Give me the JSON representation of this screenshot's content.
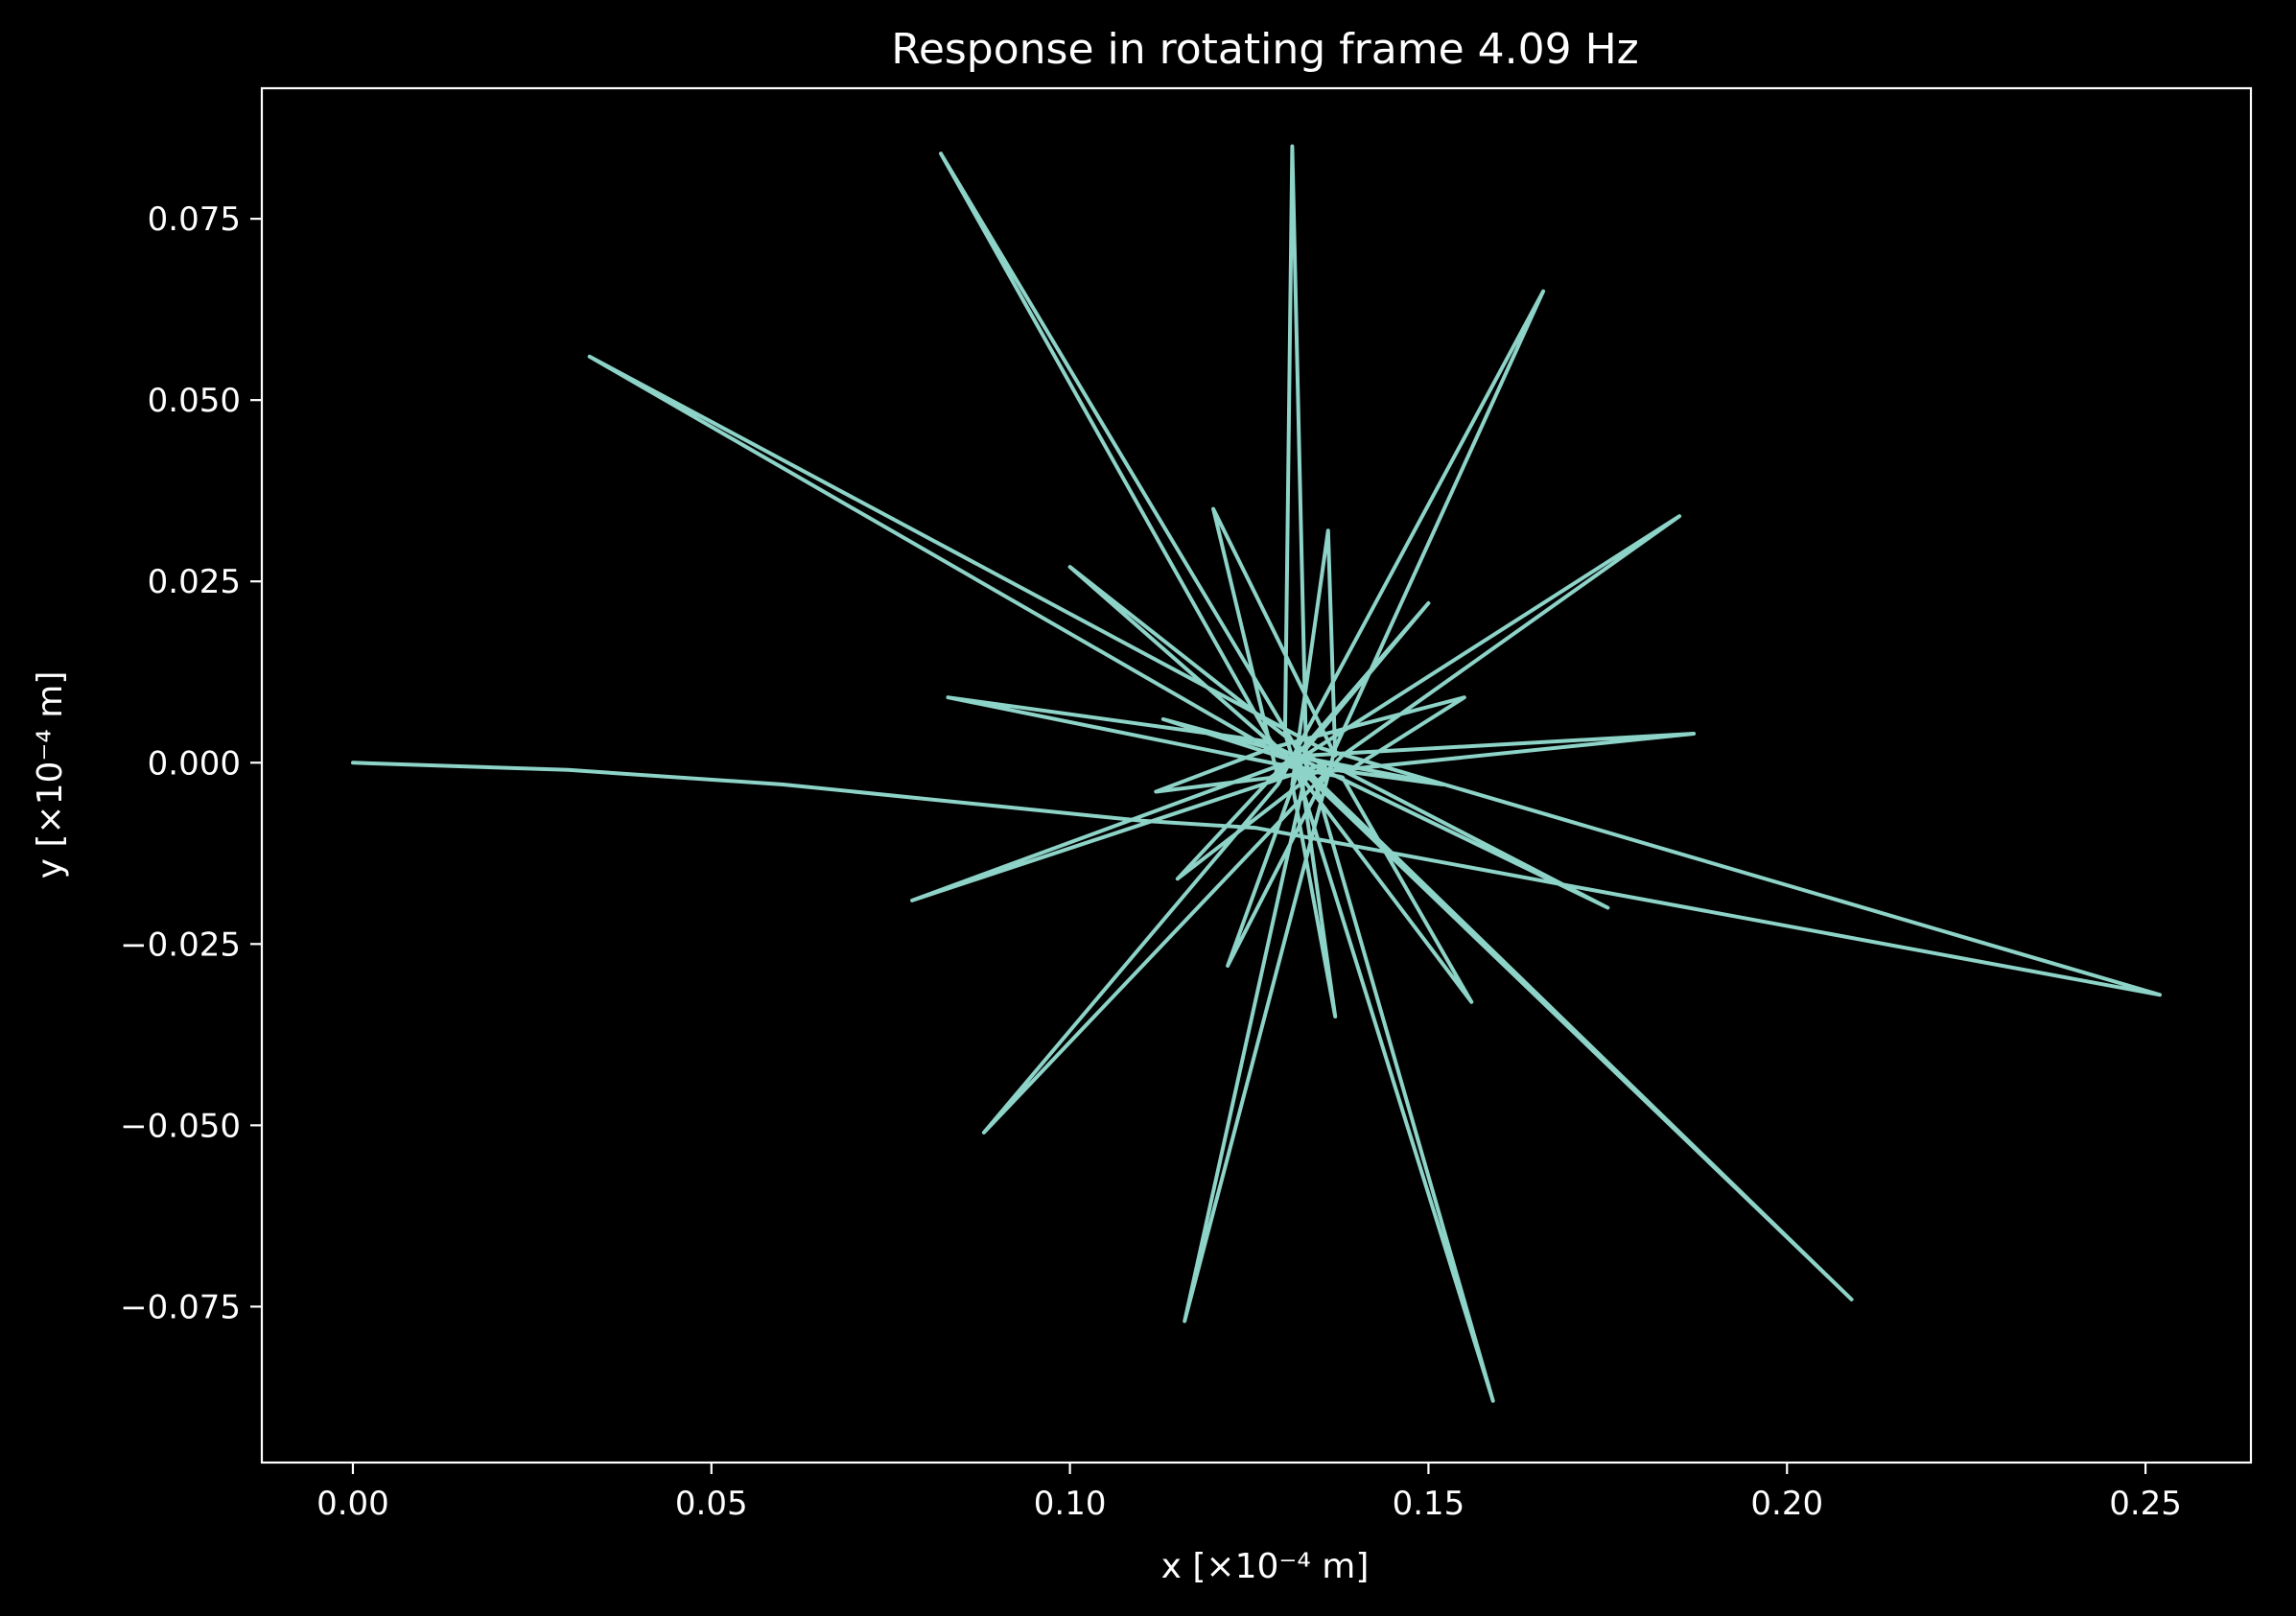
{
  "chart_data": {
    "type": "line",
    "title": "Response in rotating frame 4.09 Hz",
    "xlabel": "x [×10⁻⁴ m]",
    "ylabel": "y [×10⁻⁴ m]",
    "xlim": [
      -0.0127,
      0.2647
    ],
    "ylim": [
      -0.0965,
      0.093
    ],
    "x_ticks": [
      0.0,
      0.05,
      0.1,
      0.15,
      0.2,
      0.25
    ],
    "x_tick_labels": [
      "0.00",
      "0.05",
      "0.10",
      "0.15",
      "0.20",
      "0.25"
    ],
    "y_ticks": [
      0.075,
      0.05,
      0.025,
      0.0,
      -0.025,
      -0.05,
      -0.075
    ],
    "y_tick_labels": [
      "0.075",
      "0.050",
      "0.025",
      "0.000",
      "−0.025",
      "−0.050",
      "−0.075"
    ],
    "grid": false,
    "series": [
      {
        "color": "#8dd3c7",
        "x": [
          0.0,
          0.03,
          0.06,
          0.09,
          0.11,
          0.126,
          0.252,
          0.135,
          0.033,
          0.133,
          0.209,
          0.128,
          0.082,
          0.134,
          0.159,
          0.13,
          0.131,
          0.133,
          0.116,
          0.137,
          0.166,
          0.129,
          0.088,
          0.138,
          0.185,
          0.128,
          0.187,
          0.133,
          0.078,
          0.136,
          0.175,
          0.127,
          0.083,
          0.138,
          0.156,
          0.13,
          0.1,
          0.136,
          0.122,
          0.133,
          0.15,
          0.129,
          0.12,
          0.137,
          0.136,
          0.131,
          0.137,
          0.132,
          0.113,
          0.139,
          0.155,
          0.128,
          0.112,
          0.137,
          0.152,
          0.131,
          0.115,
          0.136,
          0.133
        ],
        "y": [
          0.0,
          -0.001,
          -0.003,
          -0.006,
          -0.008,
          -0.009,
          -0.032,
          0.002,
          0.056,
          -0.001,
          -0.074,
          0.003,
          0.084,
          -0.002,
          -0.088,
          0.004,
          0.085,
          -0.001,
          -0.077,
          0.002,
          0.065,
          -0.003,
          -0.051,
          0.001,
          0.034,
          -0.002,
          0.004,
          0.001,
          -0.019,
          0.0,
          -0.02,
          0.003,
          0.009,
          -0.002,
          -0.033,
          0.001,
          0.027,
          -0.001,
          -0.028,
          0.002,
          0.022,
          -0.002,
          0.035,
          0.001,
          0.032,
          -0.003,
          -0.035,
          0.0,
          0.006,
          -0.001,
          0.009,
          0.002,
          -0.004,
          -0.001,
          -0.003,
          0.001,
          -0.016,
          0.0,
          -0.001
        ]
      }
    ]
  }
}
